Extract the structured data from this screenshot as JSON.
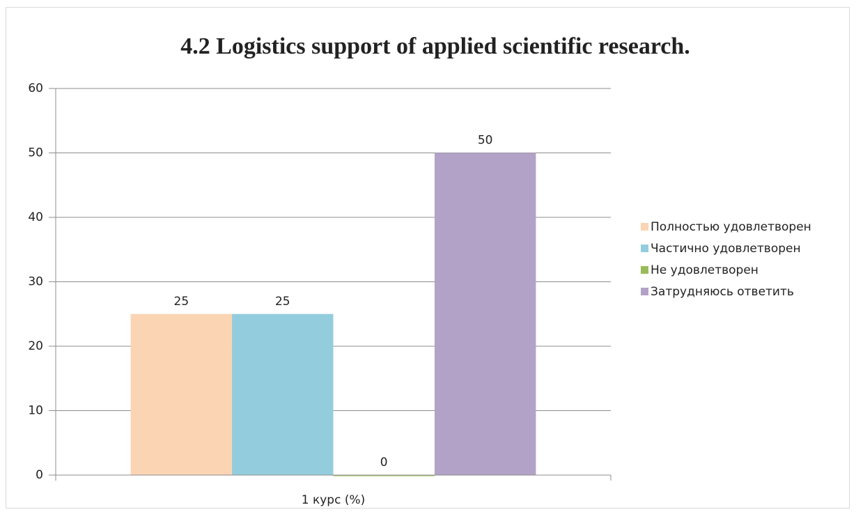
{
  "chart_data": {
    "type": "bar",
    "title": "4.2 Logistics support of applied scientific research.",
    "categories": [
      "1 курс (%)"
    ],
    "series": [
      {
        "name": "Полностью удовлетворен",
        "color": "#fad4b3",
        "values": [
          25
        ]
      },
      {
        "name": "Частично удовлетворен",
        "color": "#93cddd",
        "values": [
          25
        ]
      },
      {
        "name": "Не удовлетворен",
        "color": "#9bbb59",
        "values": [
          0
        ]
      },
      {
        "name": "Затрудняюсь ответить",
        "color": "#b3a2c7",
        "values": [
          50
        ]
      }
    ],
    "ylim": [
      0,
      60
    ],
    "yticks": [
      0,
      10,
      20,
      30,
      40,
      50,
      60
    ],
    "grid": true,
    "legend": "right"
  }
}
